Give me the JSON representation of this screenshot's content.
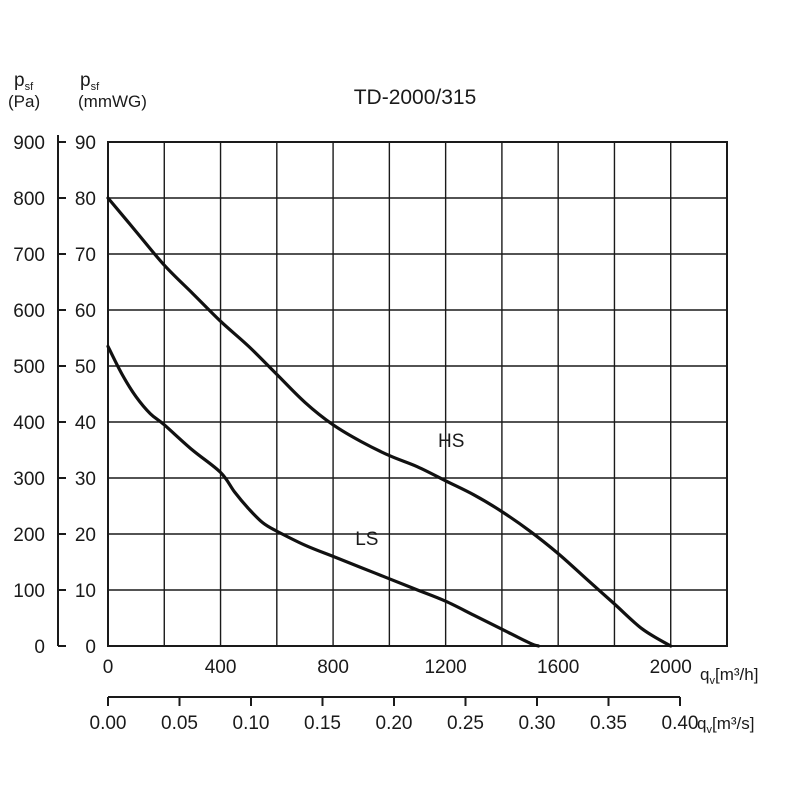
{
  "chart_data": {
    "type": "line",
    "title": "TD-2000/315",
    "y_left": {
      "label_main": "p",
      "label_sub": "sf",
      "unit": "(Pa)",
      "ticks": [
        0,
        100,
        200,
        300,
        400,
        500,
        600,
        700,
        800,
        900
      ],
      "range": [
        0,
        900
      ]
    },
    "y_right": {
      "label_main": "p",
      "label_sub": "sf",
      "unit": "(mmWG)",
      "ticks": [
        0,
        10,
        20,
        30,
        40,
        50,
        60,
        70,
        80,
        90
      ],
      "range": [
        0,
        90
      ]
    },
    "x_primary": {
      "label_main": "q",
      "label_sub": "v",
      "unit": "[m³/h]",
      "ticks": [
        0,
        400,
        800,
        1200,
        1600,
        2000
      ],
      "range": [
        0,
        2200
      ]
    },
    "x_secondary": {
      "label_main": "q",
      "label_sub": "v",
      "unit": "[m³/s]",
      "ticks": [
        "0.00",
        "0.05",
        "0.10",
        "0.15",
        "0.20",
        "0.25",
        "0.30",
        "0.35",
        "0.40"
      ]
    },
    "grid": true,
    "series": [
      {
        "name": "HS",
        "x": [
          0,
          100,
          200,
          300,
          400,
          500,
          600,
          700,
          800,
          900,
          1000,
          1100,
          1200,
          1300,
          1400,
          1500,
          1600,
          1700,
          1800,
          1900,
          2000
        ],
        "y": [
          80,
          74,
          68,
          63,
          58,
          53.5,
          48.5,
          43.5,
          39.5,
          36.5,
          34,
          32,
          29.5,
          27,
          24,
          20.5,
          16.5,
          12,
          7.5,
          3,
          0
        ]
      },
      {
        "name": "LS",
        "x": [
          0,
          50,
          100,
          150,
          200,
          300,
          400,
          450,
          500,
          550,
          600,
          700,
          800,
          900,
          1000,
          1100,
          1200,
          1300,
          1400,
          1500,
          1530
        ],
        "y": [
          53.5,
          48.5,
          44.5,
          41.5,
          39.5,
          35,
          31,
          27.5,
          24.5,
          22,
          20.5,
          18,
          16,
          14,
          12,
          10,
          8,
          5.5,
          3,
          0.5,
          0
        ]
      }
    ],
    "curve_labels": [
      {
        "text": "HS",
        "x": 1220,
        "y": 35.5
      },
      {
        "text": "LS",
        "x": 920,
        "y": 18
      }
    ]
  }
}
